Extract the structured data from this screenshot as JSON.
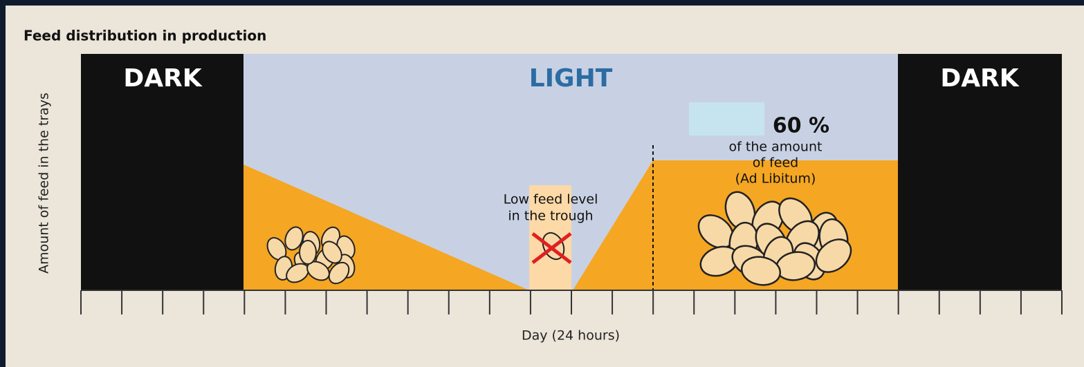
{
  "title": "Feed distribution in production",
  "periods": {
    "dark_left": "DARK",
    "light": "LIGHT",
    "dark_right": "DARK"
  },
  "ad_libitum": {
    "percent": "60 %",
    "lines": [
      "of the amount",
      "of feed",
      "(Ad Libitum)"
    ]
  },
  "low_feed": {
    "lines": [
      "Low feed level",
      "in the trough"
    ]
  },
  "y_axis_label": "Amount of feed in the trays",
  "x_axis_label": "Day (24 hours)"
}
